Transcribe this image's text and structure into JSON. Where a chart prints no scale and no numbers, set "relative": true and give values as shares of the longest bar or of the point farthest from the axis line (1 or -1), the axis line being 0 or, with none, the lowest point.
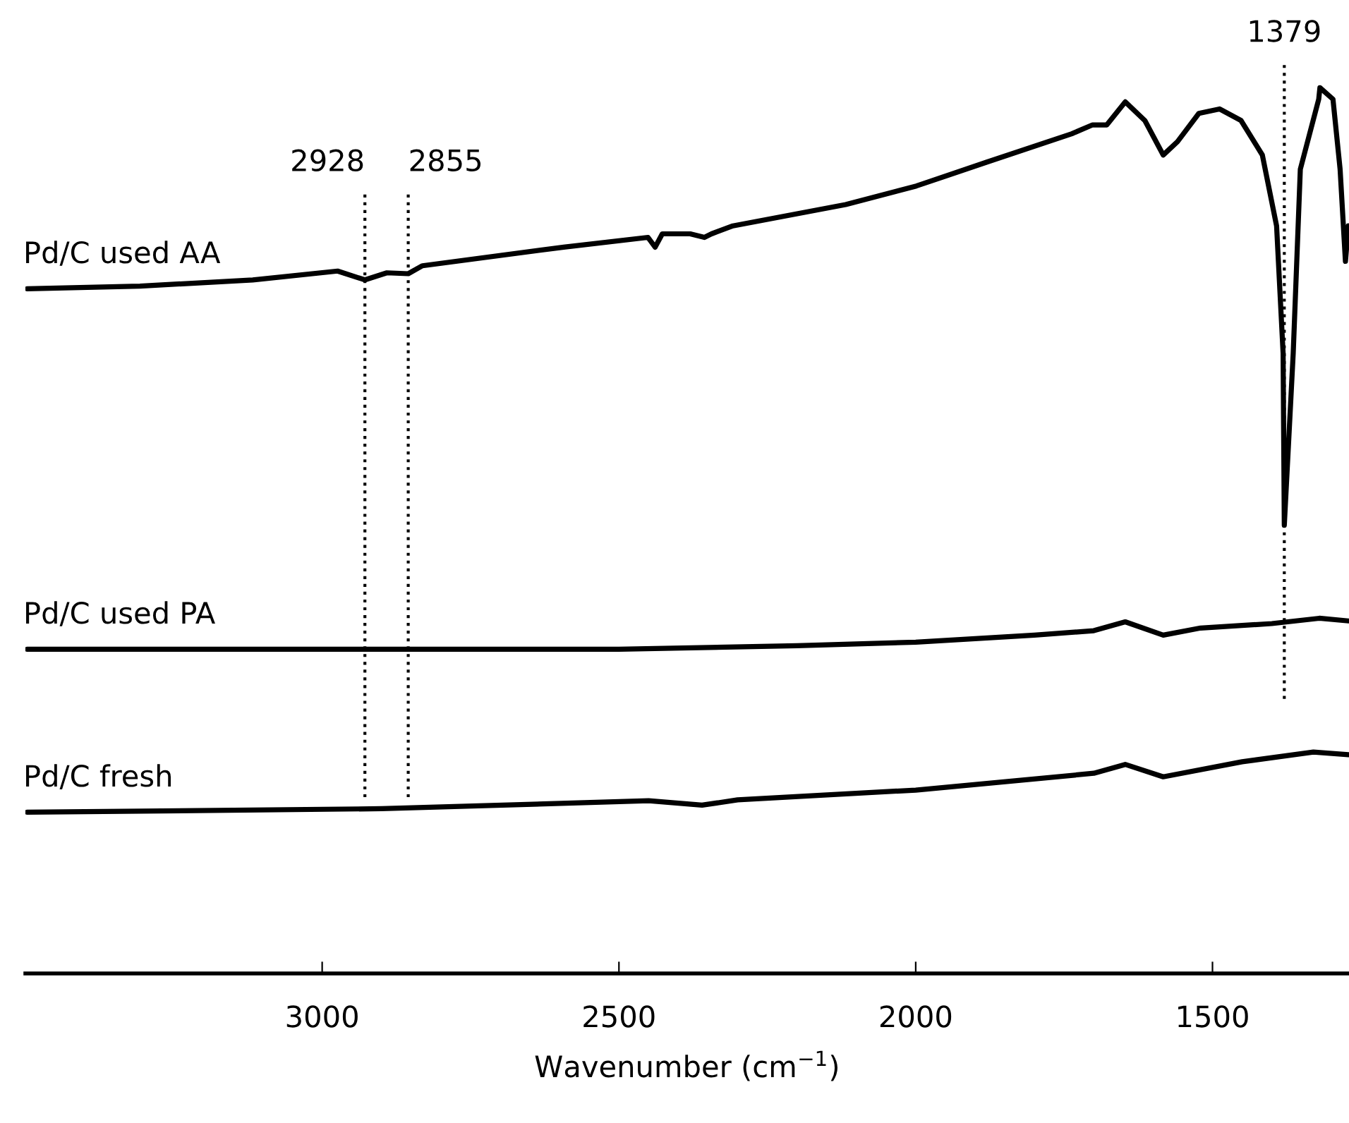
{
  "chart_data": {
    "type": "line",
    "relative": true,
    "xlabel": "Wavenumber (cm$^{−1}$)",
    "xlim": [
      3500,
      1270
    ],
    "xticks": [
      3000,
      2500,
      2000,
      1500
    ],
    "tick_labels": "x",
    "legend": false,
    "grid": false,
    "line_style": "solid",
    "marker": "none",
    "series": [
      {
        "name": "Pd/C used AA",
        "color": "#000000",
        "x": [
          3497,
          3307,
          3117,
          2974,
          2928,
          2891,
          2855,
          2831,
          2593,
          2451,
          2439,
          2427,
          2380,
          2356,
          2344,
          2308,
          2118,
          1999,
          1880,
          1737,
          1702,
          1678,
          1647,
          1614,
          1583,
          1559,
          1523,
          1488,
          1452,
          1416,
          1392,
          1381,
          1379,
          1364,
          1352,
          1321,
          1319,
          1297,
          1285,
          1276,
          1271
        ],
        "values": [
          0.773,
          0.776,
          0.783,
          0.793,
          0.783,
          0.791,
          0.79,
          0.799,
          0.82,
          0.831,
          0.82,
          0.835,
          0.835,
          0.831,
          0.835,
          0.844,
          0.868,
          0.889,
          0.916,
          0.948,
          0.958,
          0.958,
          0.984,
          0.963,
          0.924,
          0.939,
          0.971,
          0.976,
          0.963,
          0.924,
          0.844,
          0.7,
          0.506,
          0.7,
          0.908,
          0.987,
          1.0,
          0.987,
          0.908,
          0.804,
          0.844
        ]
      },
      {
        "name": "Pd/C used PA",
        "color": "#000000",
        "x": [
          3497,
          3000,
          2500,
          2200,
          2000,
          1800,
          1700,
          1647,
          1583,
          1520,
          1400,
          1320,
          1271
        ],
        "values": [
          0.366,
          0.366,
          0.366,
          0.37,
          0.374,
          0.382,
          0.387,
          0.397,
          0.382,
          0.39,
          0.395,
          0.401,
          0.398
        ]
      },
      {
        "name": "Pd/C fresh",
        "color": "#000000",
        "x": [
          3497,
          2900,
          2450,
          2360,
          2300,
          2000,
          1700,
          1647,
          1583,
          1450,
          1330,
          1271
        ],
        "values": [
          0.182,
          0.186,
          0.195,
          0.19,
          0.196,
          0.207,
          0.226,
          0.236,
          0.222,
          0.239,
          0.25,
          0.247
        ]
      }
    ],
    "ref_lines": [
      {
        "axis": "x",
        "value": 2928,
        "label": "2928",
        "line_style": "dotted",
        "color": "#000000"
      },
      {
        "axis": "x",
        "value": 2855,
        "label": "2855",
        "line_style": "dotted",
        "color": "#000000"
      },
      {
        "axis": "x",
        "value": 1379,
        "label": "1379",
        "line_style": "dotted",
        "color": "#000000"
      }
    ]
  }
}
